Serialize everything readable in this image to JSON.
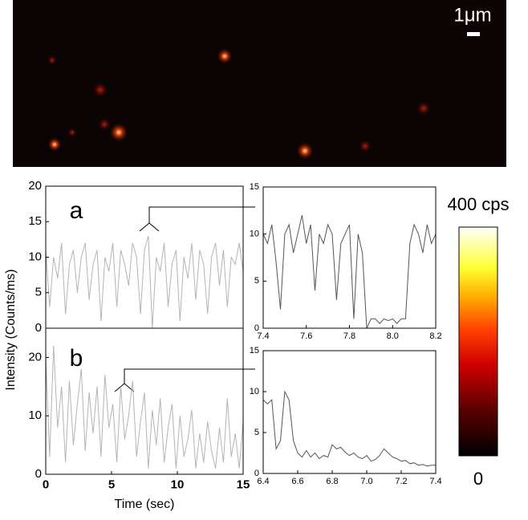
{
  "image": {
    "scale_bar": "1μm"
  },
  "colorbar": {
    "max_label": "400 cps",
    "min_label": "0"
  },
  "chart_data": [
    {
      "type": "line",
      "label": "a",
      "color": "#b4b4b4",
      "xlim": [
        0,
        15
      ],
      "ylim": [
        0,
        20
      ],
      "yticks": [
        0,
        5,
        10,
        15,
        20
      ],
      "x": [
        0,
        0.3,
        0.6,
        0.9,
        1.2,
        1.5,
        1.8,
        2.1,
        2.4,
        2.7,
        3,
        3.3,
        3.6,
        3.9,
        4.2,
        4.5,
        4.8,
        5.1,
        5.4,
        5.7,
        6,
        6.3,
        6.6,
        6.9,
        7.2,
        7.5,
        7.8,
        8.1,
        8.4,
        8.7,
        9,
        9.3,
        9.6,
        9.9,
        10.2,
        10.5,
        10.8,
        11.1,
        11.4,
        11.7,
        12,
        12.3,
        12.6,
        12.9,
        13.2,
        13.5,
        13.8,
        14.1,
        14.4,
        14.7,
        15
      ],
      "values": [
        11,
        3,
        10,
        7,
        12,
        2,
        9,
        11,
        5,
        10,
        12,
        4,
        9,
        11,
        1,
        10,
        8,
        12,
        3,
        11,
        9,
        6,
        12,
        10,
        2,
        11,
        13,
        0,
        10,
        8,
        12,
        3,
        9,
        11,
        1,
        10,
        7,
        12,
        4,
        11,
        9,
        2,
        10,
        12,
        6,
        11,
        3,
        10,
        9,
        12,
        8
      ]
    },
    {
      "type": "line",
      "label": "b",
      "color": "#b4b4b4",
      "xlabel": "Time (sec)",
      "ylabel": "Intensity (Counts/ms)",
      "xlim": [
        0,
        15
      ],
      "ylim": [
        0,
        25
      ],
      "xticks": [
        0,
        5,
        10,
        15
      ],
      "yticks": [
        0,
        10,
        20
      ],
      "x": [
        0,
        0.3,
        0.6,
        0.9,
        1.2,
        1.5,
        1.8,
        2.1,
        2.4,
        2.7,
        3,
        3.3,
        3.6,
        3.9,
        4.2,
        4.5,
        4.8,
        5.1,
        5.4,
        5.7,
        6,
        6.3,
        6.6,
        6.9,
        7.2,
        7.5,
        7.8,
        8.1,
        8.4,
        8.7,
        9,
        9.3,
        9.6,
        9.9,
        10.2,
        10.5,
        10.8,
        11.1,
        11.4,
        11.7,
        12,
        12.3,
        12.6,
        12.9,
        13.2,
        13.5,
        13.8,
        14.1,
        14.4,
        14.7,
        15
      ],
      "values": [
        20,
        3,
        22,
        8,
        15,
        2,
        16,
        5,
        12,
        18,
        4,
        14,
        7,
        15,
        3,
        17,
        8,
        12,
        2,
        15,
        6,
        10,
        16,
        3,
        9,
        14,
        1,
        11,
        5,
        13,
        2,
        8,
        12,
        1,
        10,
        3,
        6,
        11,
        1,
        7,
        2,
        9,
        4,
        1,
        8,
        2,
        13,
        3,
        7,
        1,
        9
      ]
    },
    {
      "type": "line",
      "color": "#555555",
      "xlim": [
        7.4,
        8.2
      ],
      "ylim": [
        0,
        15
      ],
      "xticks": [
        7.4,
        7.6,
        7.8,
        {
          "value": 8,
          "label": "8.0"
        },
        8.2
      ],
      "yticks": [
        0,
        5,
        10,
        15
      ],
      "x": [
        7.4,
        7.42,
        7.44,
        7.46,
        7.48,
        7.5,
        7.52,
        7.54,
        7.56,
        7.58,
        7.6,
        7.62,
        7.64,
        7.66,
        7.68,
        7.7,
        7.72,
        7.74,
        7.76,
        7.78,
        7.8,
        7.82,
        7.84,
        7.86,
        7.88,
        7.9,
        7.92,
        7.94,
        7.96,
        7.98,
        8,
        8.02,
        8.04,
        8.06,
        8.08,
        8.1,
        8.12,
        8.14,
        8.16,
        8.18,
        8.2
      ],
      "values": [
        10,
        9,
        11,
        7,
        2,
        10,
        11,
        8,
        10,
        12,
        9,
        11,
        4,
        10,
        9,
        11,
        10,
        3,
        9,
        10,
        11,
        1,
        10,
        8,
        0,
        1,
        1,
        0.5,
        1,
        0.8,
        1,
        0.5,
        1,
        1,
        9,
        11,
        10,
        8,
        11,
        9,
        10
      ]
    },
    {
      "type": "line",
      "color": "#555555",
      "xlim": [
        6.4,
        7.4
      ],
      "ylim": [
        0,
        15
      ],
      "xticks": [
        6.4,
        6.6,
        6.8,
        {
          "value": 7,
          "label": "7.0"
        },
        7.2,
        7.4
      ],
      "yticks": [
        0,
        5,
        10,
        15
      ],
      "x": [
        6.4,
        6.425,
        6.45,
        6.475,
        6.5,
        6.525,
        6.55,
        6.575,
        6.6,
        6.625,
        6.65,
        6.675,
        6.7,
        6.725,
        6.75,
        6.775,
        6.8,
        6.825,
        6.85,
        6.875,
        6.9,
        6.925,
        6.95,
        6.975,
        7,
        7.025,
        7.05,
        7.075,
        7.1,
        7.125,
        7.15,
        7.175,
        7.2,
        7.225,
        7.25,
        7.275,
        7.3,
        7.325,
        7.35,
        7.375,
        7.4
      ],
      "values": [
        9,
        8.5,
        9,
        3,
        4,
        10,
        9,
        4,
        2.5,
        2,
        2.8,
        2,
        2.5,
        1.8,
        2.2,
        2,
        3.5,
        3,
        3.2,
        2.6,
        2.2,
        2.5,
        2,
        1.8,
        2.2,
        1.5,
        1.7,
        2.2,
        3,
        2.5,
        2,
        1.8,
        1.5,
        1.6,
        1.2,
        1.3,
        1,
        1.1,
        0.9,
        1,
        1
      ]
    }
  ]
}
